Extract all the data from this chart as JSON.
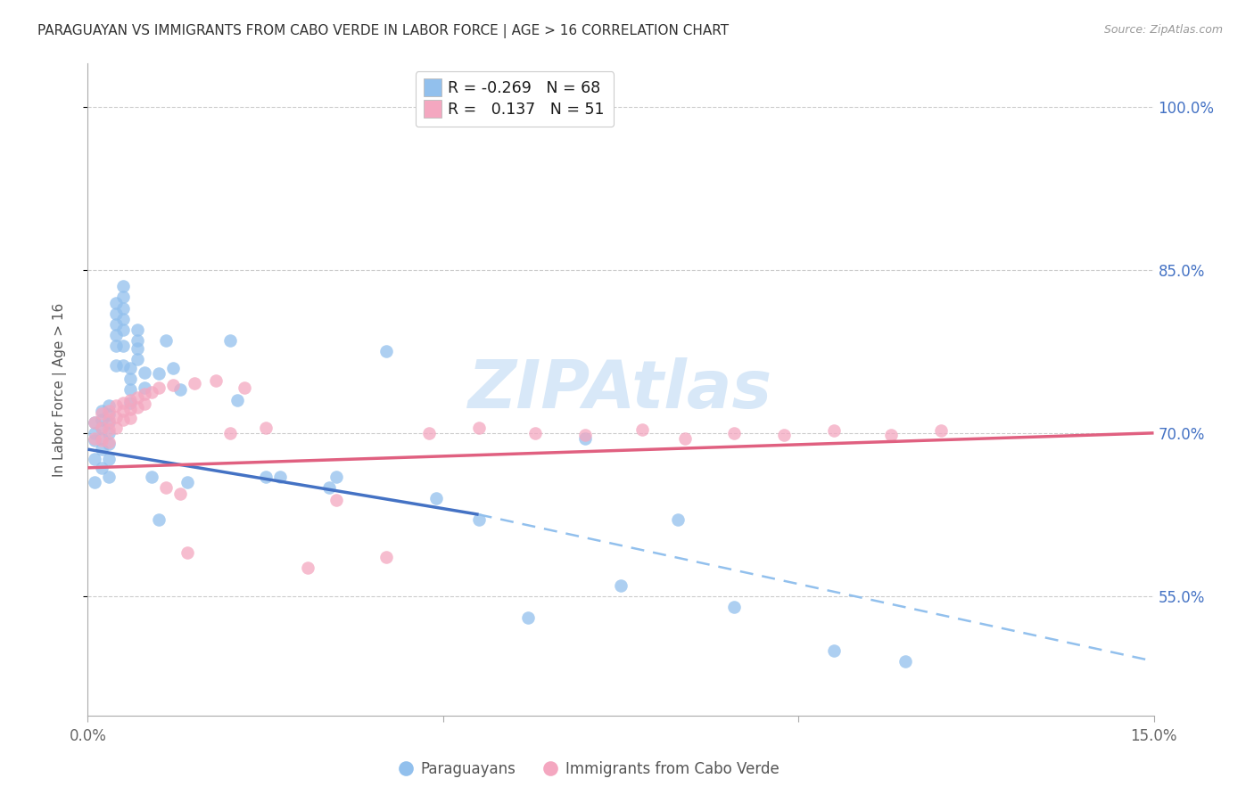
{
  "title": "PARAGUAYAN VS IMMIGRANTS FROM CABO VERDE IN LABOR FORCE | AGE > 16 CORRELATION CHART",
  "source": "Source: ZipAtlas.com",
  "ylabel": "In Labor Force | Age > 16",
  "xlim": [
    0.0,
    0.15
  ],
  "ylim": [
    0.44,
    1.04
  ],
  "xtick_pos": [
    0.0,
    0.05,
    0.1,
    0.15
  ],
  "xticklabels": [
    "0.0%",
    "",
    "",
    "15.0%"
  ],
  "ytick_positions": [
    0.55,
    0.7,
    0.85,
    1.0
  ],
  "ytick_labels": [
    "55.0%",
    "70.0%",
    "85.0%",
    "100.0%"
  ],
  "paraguayan_color": "#92C0ED",
  "caboverde_color": "#F4A7C0",
  "regression_blue_solid": "#4472C4",
  "regression_blue_dash": "#92C0ED",
  "regression_pink": "#E06080",
  "watermark_color": "#D8E8F8",
  "legend_R_blue": "-0.269",
  "legend_N_blue": "68",
  "legend_R_pink": "0.137",
  "legend_N_pink": "51",
  "blue_line_x0": 0.0,
  "blue_line_y0": 0.685,
  "blue_line_x1": 0.055,
  "blue_line_y1": 0.625,
  "blue_line_x2": 0.15,
  "blue_line_y2": 0.49,
  "pink_line_x0": 0.0,
  "pink_line_y0": 0.668,
  "pink_line_x1": 0.15,
  "pink_line_y1": 0.7,
  "paraguayan_x": [
    0.001,
    0.001,
    0.001,
    0.001,
    0.001,
    0.002,
    0.002,
    0.002,
    0.002,
    0.002,
    0.002,
    0.003,
    0.003,
    0.003,
    0.003,
    0.003,
    0.003,
    0.003,
    0.004,
    0.004,
    0.004,
    0.004,
    0.004,
    0.004,
    0.005,
    0.005,
    0.005,
    0.005,
    0.005,
    0.005,
    0.005,
    0.006,
    0.006,
    0.006,
    0.006,
    0.007,
    0.007,
    0.007,
    0.007,
    0.008,
    0.008,
    0.009,
    0.01,
    0.01,
    0.011,
    0.012,
    0.013,
    0.014,
    0.02,
    0.021,
    0.025,
    0.027,
    0.034,
    0.035,
    0.042,
    0.049,
    0.055,
    0.062,
    0.07,
    0.075,
    0.083,
    0.091,
    0.105,
    0.115
  ],
  "paraguayan_y": [
    0.71,
    0.7,
    0.693,
    0.676,
    0.655,
    0.72,
    0.712,
    0.705,
    0.695,
    0.685,
    0.668,
    0.725,
    0.717,
    0.71,
    0.7,
    0.69,
    0.676,
    0.66,
    0.82,
    0.81,
    0.8,
    0.79,
    0.78,
    0.762,
    0.835,
    0.825,
    0.815,
    0.805,
    0.795,
    0.78,
    0.762,
    0.76,
    0.75,
    0.74,
    0.728,
    0.795,
    0.785,
    0.778,
    0.768,
    0.756,
    0.742,
    0.66,
    0.755,
    0.62,
    0.785,
    0.76,
    0.74,
    0.655,
    0.785,
    0.73,
    0.66,
    0.66,
    0.65,
    0.66,
    0.775,
    0.64,
    0.62,
    0.53,
    0.695,
    0.56,
    0.62,
    0.54,
    0.5,
    0.49
  ],
  "caboverde_x": [
    0.001,
    0.001,
    0.002,
    0.002,
    0.002,
    0.003,
    0.003,
    0.003,
    0.003,
    0.004,
    0.004,
    0.004,
    0.005,
    0.005,
    0.005,
    0.006,
    0.006,
    0.006,
    0.007,
    0.007,
    0.008,
    0.008,
    0.009,
    0.01,
    0.011,
    0.012,
    0.013,
    0.014,
    0.015,
    0.018,
    0.02,
    0.022,
    0.025,
    0.031,
    0.035,
    0.042,
    0.048,
    0.055,
    0.063,
    0.07,
    0.078,
    0.084,
    0.091,
    0.098,
    0.105,
    0.113,
    0.12
  ],
  "caboverde_y": [
    0.71,
    0.695,
    0.718,
    0.705,
    0.693,
    0.72,
    0.712,
    0.703,
    0.692,
    0.725,
    0.715,
    0.705,
    0.728,
    0.72,
    0.712,
    0.73,
    0.722,
    0.714,
    0.733,
    0.724,
    0.736,
    0.727,
    0.738,
    0.742,
    0.65,
    0.744,
    0.644,
    0.59,
    0.746,
    0.748,
    0.7,
    0.742,
    0.705,
    0.576,
    0.638,
    0.586,
    0.7,
    0.705,
    0.7,
    0.698,
    0.703,
    0.695,
    0.7,
    0.698,
    0.702,
    0.698,
    0.702
  ]
}
